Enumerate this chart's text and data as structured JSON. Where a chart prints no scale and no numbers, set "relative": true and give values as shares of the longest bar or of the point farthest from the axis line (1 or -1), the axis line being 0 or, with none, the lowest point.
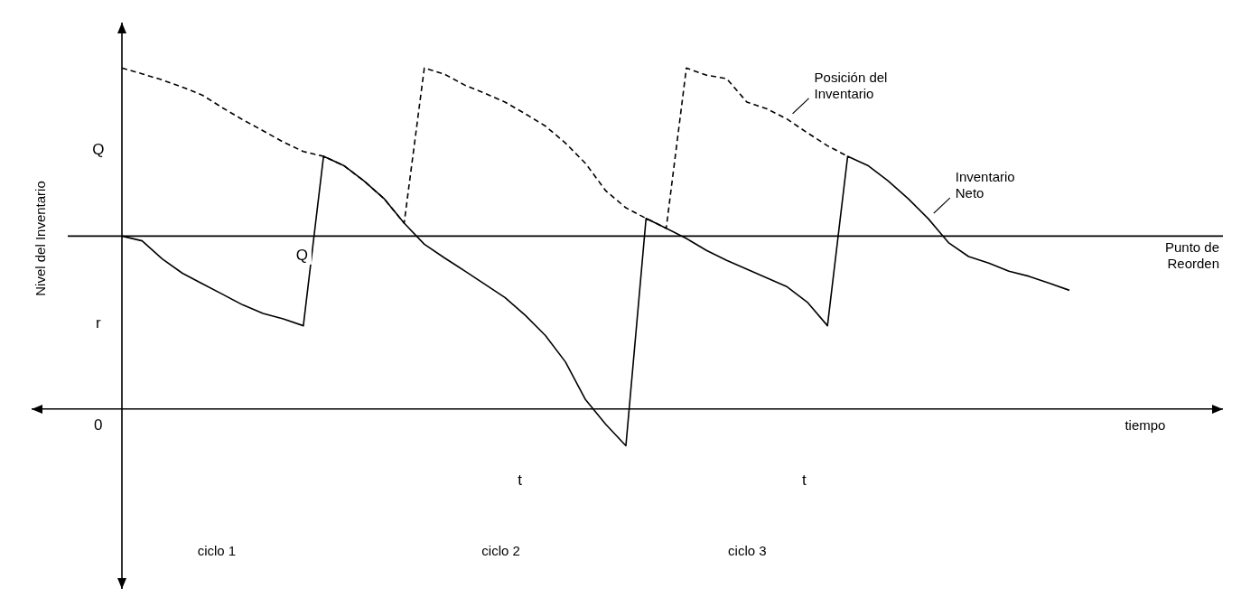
{
  "chart_data": {
    "type": "line",
    "relative": true,
    "legend": false,
    "tick_labels": false,
    "marker": "none",
    "categories": [
      null,
      null,
      null,
      null,
      null,
      null,
      null,
      null,
      null,
      null,
      null,
      null,
      null,
      null,
      null,
      null,
      null,
      null,
      null,
      null,
      null,
      null,
      null,
      null,
      null,
      null,
      null,
      null,
      null,
      null,
      null,
      null,
      null,
      null,
      null,
      null,
      null,
      null,
      null,
      null,
      null,
      null,
      null,
      null,
      null,
      null,
      null,
      null
    ],
    "series": [
      {
        "name": "Posición del Inventario",
        "color": "#000000",
        "line_style": "dashed",
        "values": [
          1,
          0.983,
          0.965,
          0.944,
          0.92,
          0.883,
          0.848,
          0.816,
          0.783,
          0.755,
          0.741,
          0.714,
          0.669,
          0.617,
          0.545,
          1,
          0.982,
          0.95,
          0.926,
          0.9,
          0.866,
          0.83,
          0.78,
          0.72,
          0.64,
          0.59,
          0.559,
          0.53,
          1,
          0.979,
          0.969,
          0.9,
          0.88,
          0.85,
          0.81,
          0.772,
          0.741,
          null,
          null,
          null,
          null,
          null,
          null,
          null,
          null,
          null,
          null,
          null
        ]
      },
      {
        "name": "Inventario Neto",
        "color": "#000000",
        "line_style": "solid",
        "values": [
          0.507,
          0.493,
          0.44,
          0.398,
          0.367,
          0.336,
          0.305,
          0.28,
          0.264,
          0.244,
          0.741,
          0.714,
          0.669,
          0.617,
          0.545,
          0.483,
          0.443,
          0.405,
          0.366,
          0.327,
          0.275,
          0.216,
          0.138,
          0.027,
          -0.045,
          -0.108,
          0.559,
          0.53,
          0.5,
          0.465,
          0.436,
          0.41,
          0.384,
          0.358,
          0.313,
          0.244,
          0.741,
          0.714,
          0.669,
          0.617,
          0.558,
          0.488,
          0.447,
          0.428,
          0.404,
          0.389,
          0.369,
          0.348
        ]
      }
    ],
    "ref_lines": [
      {
        "axis": "y",
        "value": 0.507,
        "label": "Punto de Reorden"
      }
    ],
    "annotations": [
      "0",
      "Q",
      "r",
      "Q",
      "t",
      "t",
      "ciclo 1",
      "ciclo 2",
      "ciclo 3",
      "Nivel del Inventario",
      "tiempo"
    ]
  }
}
